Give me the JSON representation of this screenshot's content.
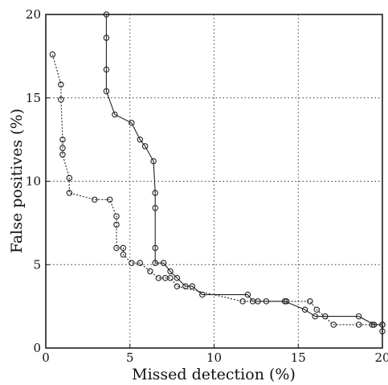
{
  "chart_data": {
    "type": "line",
    "title": "",
    "xlabel": "Missed detection (%)",
    "ylabel": "False positives (%)",
    "xlim": [
      0,
      20
    ],
    "ylim": [
      0,
      20
    ],
    "xticks": [
      0,
      5,
      10,
      15,
      20
    ],
    "yticks": [
      0,
      5,
      10,
      15,
      20
    ],
    "xtick_labels": [
      "0",
      "5",
      "10",
      "15",
      "20"
    ],
    "ytick_labels": [
      "0",
      "5",
      "10",
      "15",
      "20"
    ],
    "grid": true,
    "marker": "circle",
    "series": [
      {
        "line_style": "solid",
        "x": [
          3.6,
          3.6,
          3.6,
          3.6,
          4.1,
          5.1,
          5.6,
          5.9,
          6.4,
          6.5,
          6.5,
          6.5,
          6.5,
          7.0,
          7.4,
          7.8,
          8.3,
          8.7,
          9.3,
          12.0,
          12.3,
          14.2,
          15.4,
          16.0,
          16.6,
          18.6,
          19.5,
          20.0,
          20.0
        ],
        "y": [
          20.0,
          18.6,
          16.7,
          15.4,
          14.0,
          13.5,
          12.5,
          12.1,
          11.2,
          9.3,
          8.4,
          6.0,
          5.1,
          5.1,
          4.6,
          4.2,
          3.7,
          3.7,
          3.2,
          3.2,
          2.8,
          2.8,
          2.3,
          1.9,
          1.9,
          1.9,
          1.4,
          1.4,
          1.0
        ]
      },
      {
        "line_style": "dashed",
        "x": [
          0.4,
          0.9,
          0.9,
          1.0,
          1.0,
          1.0,
          1.4,
          1.4,
          2.9,
          3.8,
          4.2,
          4.2,
          4.2,
          4.6,
          4.6,
          5.1,
          5.6,
          6.2,
          6.7,
          7.1,
          7.4,
          7.8,
          11.7,
          12.6,
          13.1,
          14.3,
          15.7,
          16.1,
          17.1,
          18.6,
          19.4,
          20.0
        ],
        "y": [
          17.6,
          15.8,
          14.9,
          12.5,
          12.0,
          11.6,
          10.2,
          9.3,
          8.9,
          8.9,
          7.9,
          7.4,
          6.0,
          6.0,
          5.6,
          5.1,
          5.1,
          4.6,
          4.2,
          4.2,
          4.2,
          3.7,
          2.8,
          2.8,
          2.8,
          2.8,
          2.8,
          2.3,
          1.4,
          1.4,
          1.4,
          1.4
        ]
      }
    ]
  }
}
